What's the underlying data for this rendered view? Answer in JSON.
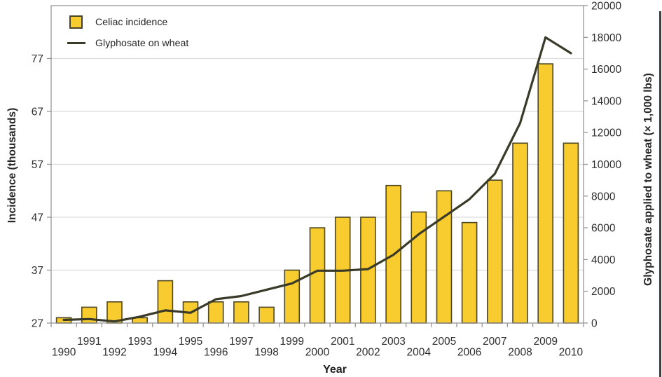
{
  "figure": {
    "legend": [
      {
        "label": "Celiac incidence",
        "swatch": "yellow-square"
      },
      {
        "label": "Glyphosate on wheat",
        "swatch": "dark-line"
      }
    ],
    "left_axis_title": "Incidence (thousands)",
    "right_axis_title": "Glyphosate applied to wheat (× 1,000 lbs)",
    "x_axis_title": "Year"
  },
  "colors": {
    "bar_fill": "#F8CB2E",
    "bar_border": "#4E4722",
    "line": "#3A3A28",
    "grid": "#DCDCDC",
    "axis": "#969696",
    "text": "#2E2E2E"
  },
  "chart_data": {
    "type": "bar+line dual-axis combo",
    "categories": [
      1990,
      1991,
      1992,
      1993,
      1994,
      1995,
      1996,
      1997,
      1998,
      1999,
      2000,
      2001,
      2002,
      2003,
      2004,
      2005,
      2006,
      2007,
      2008,
      2009,
      2010
    ],
    "series": [
      {
        "name": "Celiac incidence",
        "type": "bar",
        "axis": "left",
        "values": [
          28,
          30,
          31,
          28,
          35,
          31,
          31,
          31,
          30,
          37,
          45,
          47,
          47,
          53,
          48,
          52,
          46,
          54,
          61,
          76,
          61
        ]
      },
      {
        "name": "Glyphosate on wheat",
        "type": "line",
        "axis": "right",
        "values": [
          200,
          250,
          100,
          400,
          800,
          650,
          1500,
          1700,
          2100,
          2500,
          3300,
          3300,
          3400,
          4300,
          5600,
          6700,
          7800,
          9400,
          12600,
          18000,
          17000
        ]
      }
    ],
    "left_axis": {
      "title": "Incidence (thousands)",
      "min": 27,
      "max": 87,
      "ticks": [
        27,
        37,
        47,
        57,
        67,
        77
      ]
    },
    "right_axis": {
      "title": "Glyphosate applied to wheat (× 1,000 lbs)",
      "min": 0,
      "max": 20000,
      "ticks": [
        0,
        2000,
        4000,
        6000,
        8000,
        10000,
        12000,
        14000,
        16000,
        18000,
        20000
      ]
    },
    "x_axis": {
      "title": "Year",
      "label_layout": "staggered: odd years upper row, even years lower row"
    },
    "grid": "horizontal gridlines at left-axis ticks 37–77",
    "legend_position": "top-left inside plot"
  }
}
